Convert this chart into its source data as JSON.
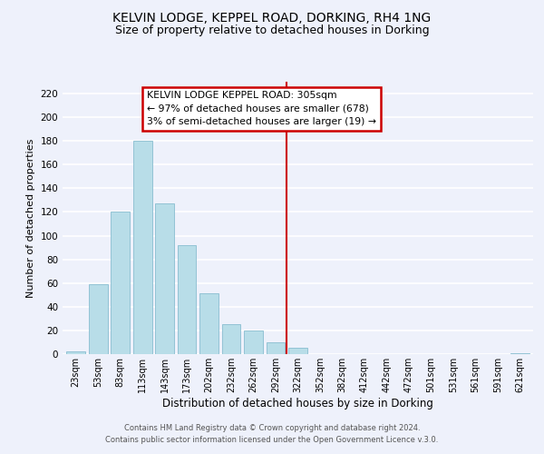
{
  "title": "KELVIN LODGE, KEPPEL ROAD, DORKING, RH4 1NG",
  "subtitle": "Size of property relative to detached houses in Dorking",
  "xlabel": "Distribution of detached houses by size in Dorking",
  "ylabel": "Number of detached properties",
  "bar_labels": [
    "23sqm",
    "53sqm",
    "83sqm",
    "113sqm",
    "143sqm",
    "173sqm",
    "202sqm",
    "232sqm",
    "262sqm",
    "292sqm",
    "322sqm",
    "352sqm",
    "382sqm",
    "412sqm",
    "442sqm",
    "472sqm",
    "501sqm",
    "531sqm",
    "561sqm",
    "591sqm",
    "621sqm"
  ],
  "bar_values": [
    2,
    59,
    120,
    180,
    127,
    92,
    51,
    25,
    20,
    10,
    5,
    0,
    0,
    0,
    0,
    0,
    0,
    0,
    0,
    0,
    1
  ],
  "bar_color": "#b8dde8",
  "bar_edge_color": "#88bdd0",
  "ylim": [
    0,
    230
  ],
  "yticks": [
    0,
    20,
    40,
    60,
    80,
    100,
    120,
    140,
    160,
    180,
    200,
    220
  ],
  "vline_x": 9.5,
  "vline_color": "#cc0000",
  "annotation_title": "KELVIN LODGE KEPPEL ROAD: 305sqm",
  "annotation_line1": "← 97% of detached houses are smaller (678)",
  "annotation_line2": "3% of semi-detached houses are larger (19) →",
  "footer1": "Contains HM Land Registry data © Crown copyright and database right 2024.",
  "footer2": "Contains public sector information licensed under the Open Government Licence v.3.0.",
  "background_color": "#eef1fb",
  "grid_color": "#ffffff",
  "title_fontsize": 10,
  "subtitle_fontsize": 9,
  "ylabel_fontsize": 8,
  "xlabel_fontsize": 8.5
}
